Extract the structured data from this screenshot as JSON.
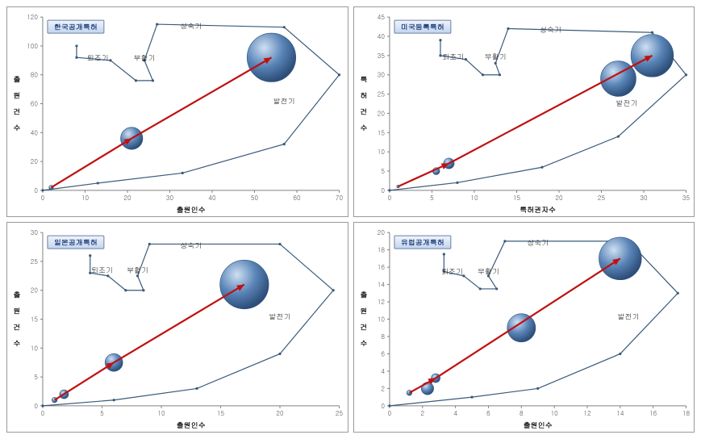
{
  "colors": {
    "bubble_fill": "#5a85b8",
    "bubble_hi": "#cfe0f2",
    "bubble_lo": "#2d4f7a",
    "arrow": "#c01010",
    "phase_line": "#3a5a7a",
    "axis": "#808080",
    "tick_text": "#555555",
    "badge_top": "#f0f5fc",
    "badge_bot": "#c2d4ee",
    "badge_text": "#0b2e6f"
  },
  "layout": {
    "cols": 2,
    "rows": 2,
    "panel_margin": {
      "l": 44,
      "r": 10,
      "t": 12,
      "b": 32
    }
  },
  "phase_labels": {
    "growth": "성숙기",
    "development": "발전기",
    "revival": "부활기",
    "decline": "퇴조기"
  },
  "charts": [
    {
      "id": "kr",
      "badge": "한국공개특허",
      "x_axis": {
        "title": "출원인수",
        "min": 0,
        "max": 70,
        "step": 10
      },
      "y_axis": {
        "title": "출 원 건 수",
        "min": 0,
        "max": 120,
        "step": 20
      },
      "bubbles": [
        {
          "x": 2,
          "y": 2,
          "r": 5
        },
        {
          "x": 21,
          "y": 36,
          "r": 25
        },
        {
          "x": 54,
          "y": 92,
          "r": 55
        }
      ],
      "arrows": [
        [
          2,
          2,
          21,
          36
        ],
        [
          21,
          36,
          54,
          92
        ]
      ],
      "phase_poly": [
        [
          0,
          0
        ],
        [
          13,
          5
        ],
        [
          33,
          12
        ],
        [
          57,
          32
        ],
        [
          70,
          80
        ],
        [
          57,
          113
        ],
        [
          27,
          115
        ],
        [
          24,
          90
        ],
        [
          26,
          76
        ],
        [
          22,
          76
        ],
        [
          16,
          90
        ],
        [
          8,
          92
        ],
        [
          8,
          100
        ]
      ],
      "phase_open": true,
      "phase_text_pos": {
        "growth": [
          35,
          112
        ],
        "development": [
          57,
          60
        ],
        "revival": [
          24,
          90
        ],
        "decline": [
          13,
          90
        ]
      }
    },
    {
      "id": "us",
      "badge": "미국등록특허",
      "x_axis": {
        "title": "특허권자수",
        "min": 0,
        "max": 35,
        "step": 5
      },
      "y_axis": {
        "title": "특 허 건 수",
        "min": 0,
        "max": 45,
        "step": 5
      },
      "bubbles": [
        {
          "x": 1,
          "y": 1,
          "r": 3
        },
        {
          "x": 5.5,
          "y": 5,
          "r": 8
        },
        {
          "x": 7,
          "y": 7,
          "r": 12
        },
        {
          "x": 27,
          "y": 29,
          "r": 40
        },
        {
          "x": 31,
          "y": 35,
          "r": 48
        }
      ],
      "arrows": [
        [
          1,
          1,
          7,
          7
        ],
        [
          7,
          7,
          31,
          35
        ]
      ],
      "phase_poly": [
        [
          0,
          0
        ],
        [
          8,
          2
        ],
        [
          18,
          6
        ],
        [
          27,
          14
        ],
        [
          35,
          30
        ],
        [
          31,
          41
        ],
        [
          14,
          42
        ],
        [
          12.5,
          33
        ],
        [
          13,
          30
        ],
        [
          11,
          30
        ],
        [
          9,
          34
        ],
        [
          6,
          35
        ],
        [
          6,
          39
        ]
      ],
      "phase_open": true,
      "phase_text_pos": {
        "growth": [
          19,
          41
        ],
        "development": [
          28,
          22
        ],
        "revival": [
          12.5,
          34
        ],
        "decline": [
          7.5,
          34
        ]
      }
    },
    {
      "id": "jp",
      "badge": "일본공개특허",
      "x_axis": {
        "title": "출원인수",
        "min": 0,
        "max": 25,
        "step": 5
      },
      "y_axis": {
        "title": "출 원 건 수",
        "min": 0,
        "max": 30,
        "step": 5
      },
      "bubbles": [
        {
          "x": 1,
          "y": 1,
          "r": 6
        },
        {
          "x": 1.8,
          "y": 2,
          "r": 10
        },
        {
          "x": 6,
          "y": 7.5,
          "r": 20
        },
        {
          "x": 17,
          "y": 21,
          "r": 55
        }
      ],
      "arrows": [
        [
          1,
          1,
          6,
          7.5
        ],
        [
          6,
          7.5,
          17,
          21
        ]
      ],
      "phase_poly": [
        [
          0,
          0
        ],
        [
          6,
          1
        ],
        [
          13,
          3
        ],
        [
          20,
          9
        ],
        [
          24.5,
          20
        ],
        [
          20,
          28
        ],
        [
          9,
          28
        ],
        [
          8,
          22.5
        ],
        [
          8.5,
          20
        ],
        [
          7,
          20
        ],
        [
          5.5,
          22.5
        ],
        [
          4,
          23
        ],
        [
          4,
          26
        ]
      ],
      "phase_open": true,
      "phase_text_pos": {
        "growth": [
          12.5,
          27.3
        ],
        "development": [
          20,
          15
        ],
        "revival": [
          8,
          23
        ],
        "decline": [
          5,
          23
        ]
      }
    },
    {
      "id": "eu",
      "badge": "유럽공개특허",
      "x_axis": {
        "title": "출원인수",
        "min": 0,
        "max": 18,
        "step": 2
      },
      "y_axis": {
        "title": "출 원 건 수",
        "min": 0,
        "max": 20,
        "step": 2
      },
      "bubbles": [
        {
          "x": 1.2,
          "y": 1.5,
          "r": 6
        },
        {
          "x": 2.3,
          "y": 2,
          "r": 14
        },
        {
          "x": 2.8,
          "y": 3.2,
          "r": 10
        },
        {
          "x": 8,
          "y": 9,
          "r": 32
        },
        {
          "x": 14,
          "y": 17,
          "r": 48
        }
      ],
      "arrows": [
        [
          1.2,
          1.5,
          2.8,
          3.2
        ],
        [
          2.8,
          3.2,
          14,
          17
        ]
      ],
      "phase_poly": [
        [
          0,
          0
        ],
        [
          5,
          1
        ],
        [
          9,
          2
        ],
        [
          14,
          6
        ],
        [
          17.5,
          13
        ],
        [
          14.5,
          19
        ],
        [
          7,
          19
        ],
        [
          6,
          15
        ],
        [
          6.5,
          13.5
        ],
        [
          5.5,
          13.5
        ],
        [
          4.5,
          15
        ],
        [
          3.3,
          15.5
        ],
        [
          3.3,
          17.5
        ]
      ],
      "phase_open": true,
      "phase_text_pos": {
        "growth": [
          9,
          18.5
        ],
        "development": [
          14.5,
          10
        ],
        "revival": [
          6,
          15.2
        ],
        "decline": [
          3.8,
          15.2
        ]
      }
    }
  ]
}
